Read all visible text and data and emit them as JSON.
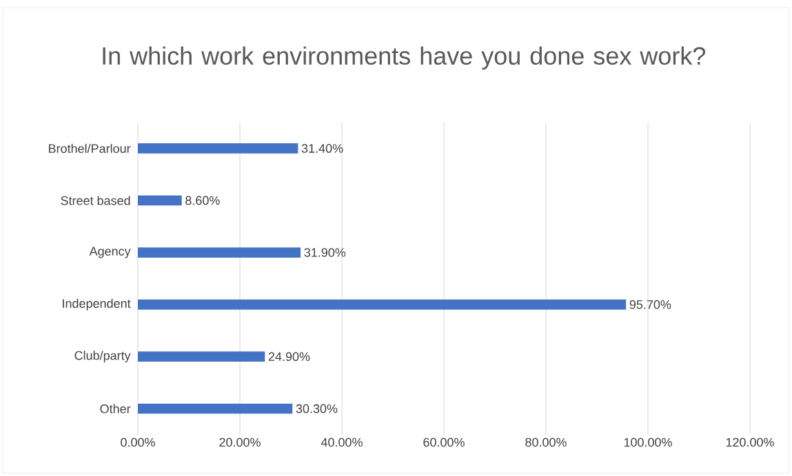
{
  "chart_data": {
    "type": "bar",
    "orientation": "horizontal",
    "title": "In which work environments have you done sex work?",
    "categories": [
      "Brothel/Parlour",
      "Street based",
      "Agency",
      "Independent",
      "Club/party",
      "Other"
    ],
    "values": [
      31.4,
      8.6,
      31.9,
      95.7,
      24.9,
      30.3
    ],
    "value_labels": [
      "31.40%",
      "8.60%",
      "31.90%",
      "95.70%",
      "24.90%",
      "30.30%"
    ],
    "color": "#4472c4",
    "xlim": [
      0,
      120
    ],
    "xticks": [
      {
        "value": 0,
        "label": "0.00%"
      },
      {
        "value": 20,
        "label": "20.00%"
      },
      {
        "value": 40,
        "label": "40.00%"
      },
      {
        "value": 60,
        "label": "60.00%"
      },
      {
        "value": 80,
        "label": "80.00%"
      },
      {
        "value": 100,
        "label": "100.00%"
      },
      {
        "value": 120,
        "label": "120.00%"
      }
    ],
    "grid": "x"
  }
}
